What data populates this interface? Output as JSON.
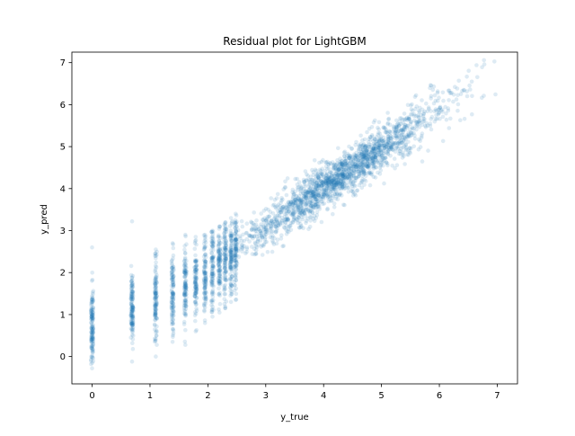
{
  "chart_data": {
    "type": "scatter",
    "title": "Residual plot for LightGBM",
    "xlabel": "y_true",
    "ylabel": "y_pred",
    "xlim": [
      -0.35,
      7.35
    ],
    "ylim": [
      -0.65,
      7.25
    ],
    "xticks": [
      0,
      1,
      2,
      3,
      4,
      5,
      6,
      7
    ],
    "yticks": [
      0,
      1,
      2,
      3,
      4,
      5,
      6,
      7
    ],
    "grid": false,
    "legend": "none",
    "point_color": "#1f77b4",
    "point_alpha": 0.15,
    "clusters": [
      {
        "x": 0.0,
        "y_mean": 0.75,
        "y_sd": 0.45,
        "y_min": -0.28,
        "y_max": 2.6,
        "count": 140
      },
      {
        "x": 0.69,
        "y_mean": 1.15,
        "y_sd": 0.45,
        "y_min": -0.12,
        "y_max": 3.22,
        "count": 130
      },
      {
        "x": 1.1,
        "y_mean": 1.35,
        "y_sd": 0.45,
        "y_min": 0.0,
        "y_max": 2.55,
        "count": 120
      },
      {
        "x": 1.39,
        "y_mean": 1.5,
        "y_sd": 0.45,
        "y_min": 0.35,
        "y_max": 2.7,
        "count": 110
      },
      {
        "x": 1.61,
        "y_mean": 1.65,
        "y_sd": 0.45,
        "y_min": 0.28,
        "y_max": 2.9,
        "count": 110
      },
      {
        "x": 1.79,
        "y_mean": 1.8,
        "y_sd": 0.45,
        "y_min": 0.6,
        "y_max": 2.85,
        "count": 100
      },
      {
        "x": 1.95,
        "y_mean": 1.95,
        "y_sd": 0.45,
        "y_min": 0.8,
        "y_max": 2.9,
        "count": 100
      },
      {
        "x": 2.08,
        "y_mean": 2.05,
        "y_sd": 0.45,
        "y_min": 0.95,
        "y_max": 3.0,
        "count": 100
      },
      {
        "x": 2.2,
        "y_mean": 2.2,
        "y_sd": 0.45,
        "y_min": 1.05,
        "y_max": 3.1,
        "count": 100
      },
      {
        "x": 2.3,
        "y_mean": 2.3,
        "y_sd": 0.45,
        "y_min": 1.15,
        "y_max": 3.2,
        "count": 100
      },
      {
        "x": 2.4,
        "y_mean": 2.4,
        "y_sd": 0.45,
        "y_min": 1.3,
        "y_max": 3.3,
        "count": 100
      },
      {
        "x": 2.48,
        "y_mean": 2.5,
        "y_sd": 0.45,
        "y_min": 1.35,
        "y_max": 3.4,
        "count": 100
      }
    ],
    "continuous_band": {
      "x_range": [
        2.5,
        7.0
      ],
      "slope": 0.93,
      "intercept": 0.3,
      "y_sd": 0.28,
      "count": 1900
    }
  }
}
